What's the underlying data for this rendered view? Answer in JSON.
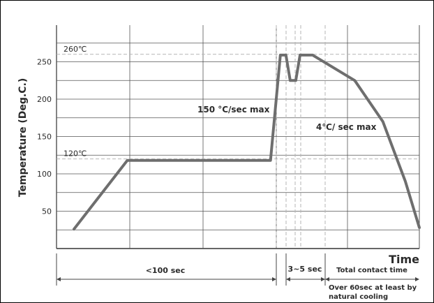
{
  "chart_data": {
    "type": "line",
    "ylabel": "Temperature (Deg.C.)",
    "xlabel": "Time",
    "yticks": [
      50,
      100,
      150,
      200,
      250
    ],
    "ylim": [
      0,
      300
    ],
    "grid": true,
    "series": [
      {
        "points": [
          {
            "t": 0,
            "temp": 26
          },
          {
            "t": 19,
            "temp": 118
          },
          {
            "t": 70,
            "temp": 118
          },
          {
            "t": 73.5,
            "temp": 259
          },
          {
            "t": 75.5,
            "temp": 259
          },
          {
            "t": 77,
            "temp": 225
          },
          {
            "t": 79,
            "temp": 225
          },
          {
            "t": 80.5,
            "temp": 259
          },
          {
            "t": 85,
            "temp": 259
          },
          {
            "t": 100,
            "temp": 225
          },
          {
            "t": 110,
            "temp": 170
          },
          {
            "t": 118,
            "temp": 90
          },
          {
            "t": 123,
            "temp": 28
          }
        ]
      }
    ],
    "reference_lines": [
      {
        "label": "260℃",
        "value": 260
      },
      {
        "label": "120℃",
        "value": 120
      }
    ],
    "annotations": [
      {
        "text": "150 °C/sec max"
      },
      {
        "text": "4℃/ sec max"
      }
    ],
    "phases": [
      {
        "label": "<100 sec"
      },
      {
        "label": "3~5 sec"
      },
      {
        "label": "Total contact time"
      }
    ],
    "footnote": [
      "Over 60sec at least by",
      "natural cooling"
    ]
  },
  "colors": {
    "curve": "#6e6e6e",
    "grid": "#555555",
    "reference": "#b5b5b5",
    "text": "#2b2b2b"
  }
}
